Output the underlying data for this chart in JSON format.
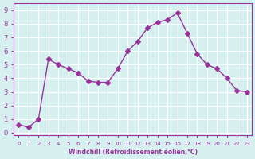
{
  "x": [
    0,
    1,
    2,
    3,
    4,
    5,
    6,
    7,
    8,
    9,
    10,
    11,
    12,
    13,
    14,
    15,
    16,
    17,
    18,
    19,
    20,
    21,
    22,
    23
  ],
  "y": [
    0.6,
    0.4,
    1.0,
    5.4,
    5.0,
    4.7,
    4.4,
    3.8,
    3.7,
    3.7,
    4.7,
    6.0,
    6.7,
    7.7,
    8.1,
    8.3,
    8.8,
    7.3,
    5.8,
    5.0,
    4.7,
    4.0,
    3.1,
    3.0
  ],
  "line_color": "#993399",
  "marker": "D",
  "marker_size": 3,
  "bg_color": "#d6f0f0",
  "grid_color": "#ffffff",
  "xlabel": "Windchill (Refroidissement éolien,°C)",
  "ylabel": "",
  "xlim": [
    -0.5,
    23.5
  ],
  "ylim": [
    -0.2,
    9.5
  ],
  "xticks": [
    0,
    1,
    2,
    3,
    4,
    5,
    6,
    7,
    8,
    9,
    10,
    11,
    12,
    13,
    14,
    15,
    16,
    17,
    18,
    19,
    20,
    21,
    22,
    23
  ],
  "yticks": [
    0,
    1,
    2,
    3,
    4,
    5,
    6,
    7,
    8,
    9
  ],
  "tick_label_color": "#993399",
  "xlabel_color": "#993399",
  "spine_color": "#993399",
  "tick_color": "#993399"
}
